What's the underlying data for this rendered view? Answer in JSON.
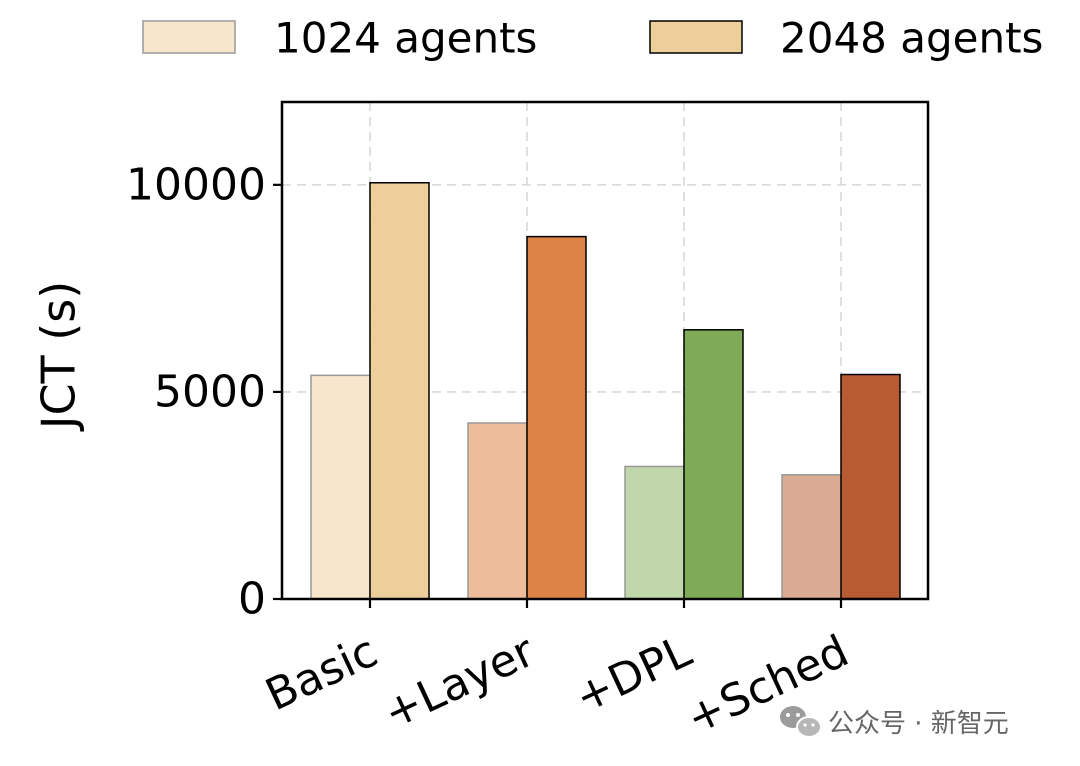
{
  "chart_data": {
    "type": "bar",
    "categories": [
      "Basic",
      "+Layer",
      "+DPL",
      "+Sched"
    ],
    "series": [
      {
        "name": "1024 agents",
        "values": [
          5400,
          4250,
          3200,
          3000
        ],
        "colors": [
          "#f5e6cc",
          "#edbd9b",
          "#c0d6ab",
          "#d9ab93"
        ],
        "edge_color": "#999999",
        "legend_color": "#f5e6cc"
      },
      {
        "name": "2048 agents",
        "values": [
          10050,
          8750,
          6500,
          5420
        ],
        "colors": [
          "#eccf9b",
          "#dd8246",
          "#7fab57",
          "#b95b32"
        ],
        "edge_color": "#000000",
        "legend_color": "#eccf9b"
      }
    ],
    "title": "",
    "xlabel": "",
    "ylabel": "JCT (s)",
    "ylim": [
      0,
      12000
    ],
    "yticks": [
      0,
      5000,
      10000
    ],
    "grid": true,
    "legend_position": "top"
  },
  "watermark": {
    "text": "公众号 · 新智元",
    "icon": "wechat-icon"
  }
}
